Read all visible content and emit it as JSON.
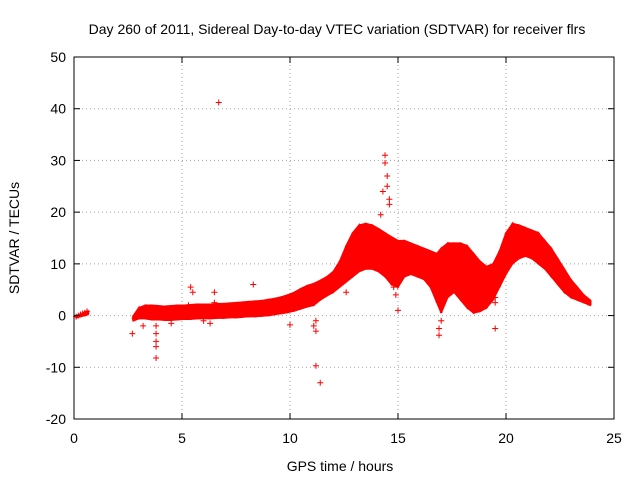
{
  "chart_data": {
    "type": "scatter",
    "title": "Day 260 of 2011, Sidereal Day-to-day VTEC variation (SDTVAR) for receiver flrs",
    "xlabel": "GPS time / hours",
    "ylabel": "SDTVAR / TECUs",
    "xlim": [
      0,
      25
    ],
    "ylim": [
      -20,
      50
    ],
    "x_ticks": [
      0,
      5,
      10,
      15,
      20,
      25
    ],
    "y_ticks": [
      -20,
      -10,
      0,
      10,
      20,
      30,
      40,
      50
    ],
    "x_tick_labels": [
      "0",
      "5",
      "10",
      "15",
      "20",
      "25"
    ],
    "y_tick_labels": [
      "-20",
      "-10",
      "0",
      "10",
      "20",
      "30",
      "40",
      "50"
    ],
    "grid": true,
    "legend": "none",
    "marker": "+",
    "color": "#ff0000",
    "series": [
      {
        "name": "SDTVAR",
        "points": [
          [
            0.1,
            -0.2
          ],
          [
            0.2,
            0.0
          ],
          [
            0.3,
            0.2
          ],
          [
            0.4,
            0.4
          ],
          [
            0.5,
            0.5
          ],
          [
            0.6,
            0.8
          ],
          [
            2.7,
            -3.5
          ],
          [
            2.8,
            -0.5
          ],
          [
            3.0,
            0.5
          ],
          [
            3.2,
            -2.0
          ],
          [
            3.4,
            1.0
          ],
          [
            3.6,
            0.5
          ],
          [
            3.8,
            -2.0
          ],
          [
            3.8,
            -3.5
          ],
          [
            3.8,
            -5.0
          ],
          [
            3.8,
            -6.0
          ],
          [
            3.8,
            -8.2
          ],
          [
            4.0,
            0.8
          ],
          [
            4.3,
            0.3
          ],
          [
            4.5,
            1.0
          ],
          [
            4.5,
            -1.5
          ],
          [
            4.8,
            0.5
          ],
          [
            5.0,
            1.0
          ],
          [
            5.3,
            2.0
          ],
          [
            5.4,
            5.5
          ],
          [
            5.5,
            4.5
          ],
          [
            5.5,
            1.5
          ],
          [
            5.8,
            1.2
          ],
          [
            6.0,
            1.0
          ],
          [
            6.0,
            -1.0
          ],
          [
            6.2,
            1.5
          ],
          [
            6.3,
            -1.5
          ],
          [
            6.5,
            4.5
          ],
          [
            6.5,
            2.5
          ],
          [
            6.7,
            41.2
          ],
          [
            7.0,
            1.5
          ],
          [
            7.5,
            1.8
          ],
          [
            8.0,
            1.5
          ],
          [
            8.3,
            6.0
          ],
          [
            8.5,
            2.0
          ],
          [
            9.0,
            2.0
          ],
          [
            9.5,
            2.5
          ],
          [
            10.0,
            2.5
          ],
          [
            10.0,
            -1.8
          ],
          [
            10.5,
            3.5
          ],
          [
            11.0,
            4.5
          ],
          [
            11.1,
            -2.0
          ],
          [
            11.2,
            -1.0
          ],
          [
            11.2,
            -3.0
          ],
          [
            11.2,
            -9.7
          ],
          [
            11.4,
            -13.0
          ],
          [
            11.5,
            5.0
          ],
          [
            12.0,
            6.0
          ],
          [
            12.5,
            8.0
          ],
          [
            12.6,
            4.5
          ],
          [
            13.0,
            12.0
          ],
          [
            13.2,
            15.0
          ],
          [
            13.5,
            16.5
          ],
          [
            14.0,
            15.0
          ],
          [
            14.2,
            19.5
          ],
          [
            14.3,
            24.0
          ],
          [
            14.4,
            31.0
          ],
          [
            14.4,
            29.5
          ],
          [
            14.5,
            27.0
          ],
          [
            14.5,
            25.0
          ],
          [
            14.6,
            22.5
          ],
          [
            14.6,
            21.5
          ],
          [
            14.7,
            13.0
          ],
          [
            14.8,
            5.5
          ],
          [
            14.9,
            4.0
          ],
          [
            15.0,
            1.0
          ],
          [
            15.0,
            13.0
          ],
          [
            15.5,
            11.0
          ],
          [
            16.0,
            9.0
          ],
          [
            16.5,
            7.0
          ],
          [
            16.9,
            -3.8
          ],
          [
            16.9,
            -2.5
          ],
          [
            17.0,
            -1.0
          ],
          [
            17.0,
            4.0
          ],
          [
            17.3,
            9.0
          ],
          [
            17.5,
            7.0
          ],
          [
            18.0,
            12.0
          ],
          [
            18.5,
            10.0
          ],
          [
            19.0,
            8.5
          ],
          [
            19.5,
            -2.5
          ],
          [
            19.5,
            3.5
          ],
          [
            19.5,
            2.5
          ],
          [
            20.0,
            14.0
          ],
          [
            20.5,
            16.0
          ],
          [
            21.0,
            15.5
          ],
          [
            21.5,
            13.0
          ],
          [
            22.0,
            11.0
          ],
          [
            22.5,
            8.0
          ],
          [
            23.0,
            5.5
          ],
          [
            23.4,
            4.5
          ],
          [
            23.8,
            2.5
          ]
        ]
      }
    ],
    "bands": [
      {
        "x": 0.1,
        "low": -0.4,
        "high": 0.0
      },
      {
        "x": 0.3,
        "low": -0.2,
        "high": 0.3
      },
      {
        "x": 0.5,
        "low": 0.0,
        "high": 0.7
      },
      {
        "x": 0.65,
        "low": 0.2,
        "high": 0.9
      },
      {
        "x": 2.75,
        "low": -1.0,
        "high": 0.0
      },
      {
        "x": 3.0,
        "low": -0.6,
        "high": 1.5
      },
      {
        "x": 3.3,
        "low": -0.6,
        "high": 2.0
      },
      {
        "x": 3.6,
        "low": -0.8,
        "high": 2.0
      },
      {
        "x": 3.9,
        "low": -0.8,
        "high": 1.9
      },
      {
        "x": 4.2,
        "low": -0.9,
        "high": 1.8
      },
      {
        "x": 4.5,
        "low": -0.9,
        "high": 1.9
      },
      {
        "x": 4.8,
        "low": -0.8,
        "high": 2.0
      },
      {
        "x": 5.1,
        "low": -0.7,
        "high": 2.0
      },
      {
        "x": 5.4,
        "low": -0.7,
        "high": 2.1
      },
      {
        "x": 5.7,
        "low": -0.6,
        "high": 2.2
      },
      {
        "x": 6.0,
        "low": -0.6,
        "high": 2.2
      },
      {
        "x": 6.3,
        "low": -0.6,
        "high": 2.2
      },
      {
        "x": 6.6,
        "low": -0.5,
        "high": 2.3
      },
      {
        "x": 6.9,
        "low": -0.5,
        "high": 2.3
      },
      {
        "x": 7.2,
        "low": -0.4,
        "high": 2.4
      },
      {
        "x": 7.5,
        "low": -0.4,
        "high": 2.5
      },
      {
        "x": 7.8,
        "low": -0.3,
        "high": 2.6
      },
      {
        "x": 8.1,
        "low": -0.2,
        "high": 2.7
      },
      {
        "x": 8.4,
        "low": -0.2,
        "high": 2.8
      },
      {
        "x": 8.7,
        "low": -0.1,
        "high": 2.9
      },
      {
        "x": 9.0,
        "low": 0.0,
        "high": 3.1
      },
      {
        "x": 9.3,
        "low": 0.2,
        "high": 3.3
      },
      {
        "x": 9.6,
        "low": 0.4,
        "high": 3.6
      },
      {
        "x": 9.9,
        "low": 0.6,
        "high": 4.0
      },
      {
        "x": 10.2,
        "low": 0.9,
        "high": 4.5
      },
      {
        "x": 10.5,
        "low": 1.3,
        "high": 5.2
      },
      {
        "x": 10.8,
        "low": 1.7,
        "high": 5.8
      },
      {
        "x": 11.1,
        "low": 2.0,
        "high": 6.2
      },
      {
        "x": 11.4,
        "low": 3.0,
        "high": 6.8
      },
      {
        "x": 11.7,
        "low": 3.8,
        "high": 7.5
      },
      {
        "x": 12.0,
        "low": 4.5,
        "high": 8.5
      },
      {
        "x": 12.3,
        "low": 5.5,
        "high": 10.5
      },
      {
        "x": 12.6,
        "low": 6.5,
        "high": 13.5
      },
      {
        "x": 12.9,
        "low": 7.5,
        "high": 16.0
      },
      {
        "x": 13.2,
        "low": 8.5,
        "high": 17.5
      },
      {
        "x": 13.5,
        "low": 9.0,
        "high": 17.8
      },
      {
        "x": 13.8,
        "low": 9.0,
        "high": 17.5
      },
      {
        "x": 14.1,
        "low": 8.5,
        "high": 16.8
      },
      {
        "x": 14.4,
        "low": 7.5,
        "high": 16.0
      },
      {
        "x": 14.7,
        "low": 6.0,
        "high": 15.2
      },
      {
        "x": 15.0,
        "low": 5.5,
        "high": 14.5
      },
      {
        "x": 15.3,
        "low": 7.5,
        "high": 14.5
      },
      {
        "x": 15.6,
        "low": 8.0,
        "high": 14.0
      },
      {
        "x": 15.9,
        "low": 7.5,
        "high": 13.5
      },
      {
        "x": 16.2,
        "low": 7.0,
        "high": 13.0
      },
      {
        "x": 16.5,
        "low": 5.5,
        "high": 12.5
      },
      {
        "x": 16.8,
        "low": 2.5,
        "high": 12.0
      },
      {
        "x": 17.0,
        "low": 0.5,
        "high": 13.0
      },
      {
        "x": 17.3,
        "low": 3.5,
        "high": 14.0
      },
      {
        "x": 17.6,
        "low": 4.5,
        "high": 14.0
      },
      {
        "x": 17.9,
        "low": 3.0,
        "high": 14.0
      },
      {
        "x": 18.2,
        "low": 1.5,
        "high": 13.5
      },
      {
        "x": 18.5,
        "low": 0.5,
        "high": 12.0
      },
      {
        "x": 18.8,
        "low": 0.8,
        "high": 10.5
      },
      {
        "x": 19.1,
        "low": 1.5,
        "high": 9.5
      },
      {
        "x": 19.4,
        "low": 3.0,
        "high": 10.0
      },
      {
        "x": 19.7,
        "low": 5.5,
        "high": 12.5
      },
      {
        "x": 20.0,
        "low": 8.0,
        "high": 16.0
      },
      {
        "x": 20.3,
        "low": 10.0,
        "high": 17.8
      },
      {
        "x": 20.6,
        "low": 11.0,
        "high": 17.5
      },
      {
        "x": 20.9,
        "low": 11.5,
        "high": 17.0
      },
      {
        "x": 21.2,
        "low": 11.0,
        "high": 16.5
      },
      {
        "x": 21.5,
        "low": 10.0,
        "high": 16.0
      },
      {
        "x": 21.8,
        "low": 9.0,
        "high": 14.5
      },
      {
        "x": 22.1,
        "low": 7.5,
        "high": 13.0
      },
      {
        "x": 22.4,
        "low": 6.0,
        "high": 11.0
      },
      {
        "x": 22.7,
        "low": 4.5,
        "high": 9.0
      },
      {
        "x": 23.0,
        "low": 3.5,
        "high": 7.0
      },
      {
        "x": 23.3,
        "low": 3.0,
        "high": 5.5
      },
      {
        "x": 23.6,
        "low": 2.5,
        "high": 4.0
      },
      {
        "x": 23.9,
        "low": 2.0,
        "high": 3.0
      }
    ]
  }
}
